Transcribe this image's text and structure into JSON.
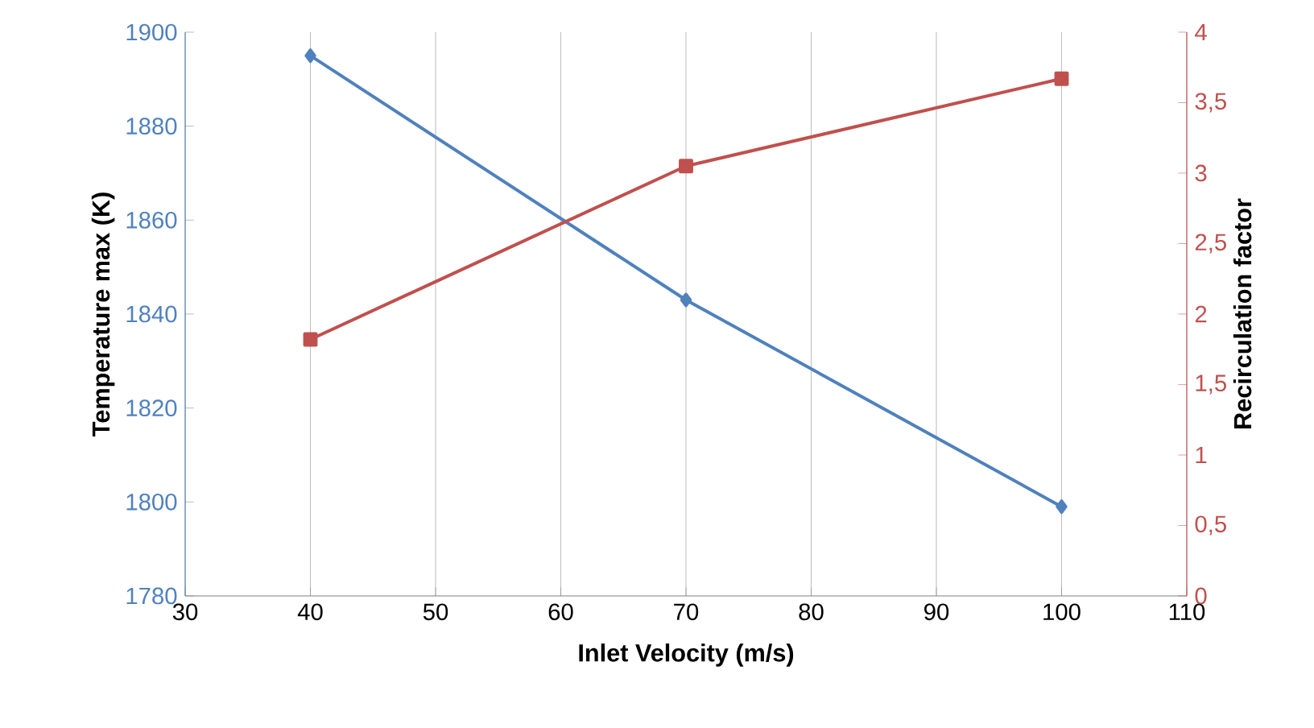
{
  "chart_data": {
    "type": "line",
    "xlabel": "Inlet Velocity (m/s)",
    "ylabel": "Temperature max (K)",
    "y2label": "Recirculation factor",
    "x": [
      40,
      70,
      100
    ],
    "xlim": [
      30,
      110
    ],
    "xticks": [
      30,
      40,
      50,
      60,
      70,
      80,
      90,
      100,
      110
    ],
    "ylim": [
      1780,
      1900
    ],
    "yticks": [
      1780,
      1800,
      1820,
      1840,
      1860,
      1880,
      1900
    ],
    "y2lim": [
      0,
      4
    ],
    "y2ticks": [
      0,
      {
        "value": 0.5,
        "label": "0,5"
      },
      1,
      {
        "value": 1.5,
        "label": "1,5"
      },
      2,
      {
        "value": 2.5,
        "label": "2,5"
      },
      3,
      {
        "value": 3.5,
        "label": "3,5"
      },
      4
    ],
    "grid": "x",
    "series": [
      {
        "color": "#4f81bd",
        "values": [
          1895,
          1843,
          1799
        ],
        "marker": "diamond"
      },
      {
        "color": "#c0504d",
        "values": [
          1.82,
          3.05,
          3.67
        ],
        "marker": "square",
        "axis": "y2"
      }
    ]
  }
}
